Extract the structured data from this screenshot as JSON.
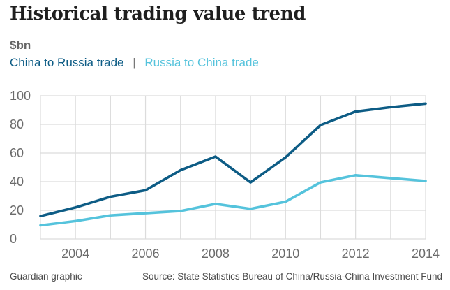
{
  "title": "Historical trading value trend",
  "footer": {
    "credit": "Guardian graphic",
    "source": "Source: State Statistics Bureau of China/Russia-China Investment Fund"
  },
  "colors": {
    "china_to_russia": "#0d5c85",
    "russia_to_china": "#55c3dc",
    "grid": "#dcdcdc",
    "axis_text": "#6b6b6b"
  },
  "chart_data": {
    "type": "line",
    "units": "$bn",
    "x": [
      2003,
      2004,
      2005,
      2006,
      2007,
      2008,
      2009,
      2010,
      2011,
      2012,
      2013,
      2014
    ],
    "series": [
      {
        "name": "China to Russia trade",
        "values": [
          16,
          22,
          29.5,
          34,
          48,
          57.5,
          39.5,
          57,
          79.5,
          89,
          92,
          94.5
        ]
      },
      {
        "name": "Russia to China trade",
        "values": [
          9.5,
          12.5,
          16.5,
          18,
          19.5,
          24.5,
          21,
          26,
          39.5,
          44.5,
          42.5,
          40.5
        ]
      }
    ],
    "xticks": [
      "2004",
      "2006",
      "2008",
      "2010",
      "2012",
      "2014"
    ],
    "yticks": [
      "0",
      "20",
      "40",
      "60",
      "80",
      "100"
    ],
    "legend_separator": "|",
    "xlim": [
      2003,
      2014
    ],
    "ylim": [
      0,
      100
    ],
    "grid": true,
    "legend_placement": "top-left"
  }
}
